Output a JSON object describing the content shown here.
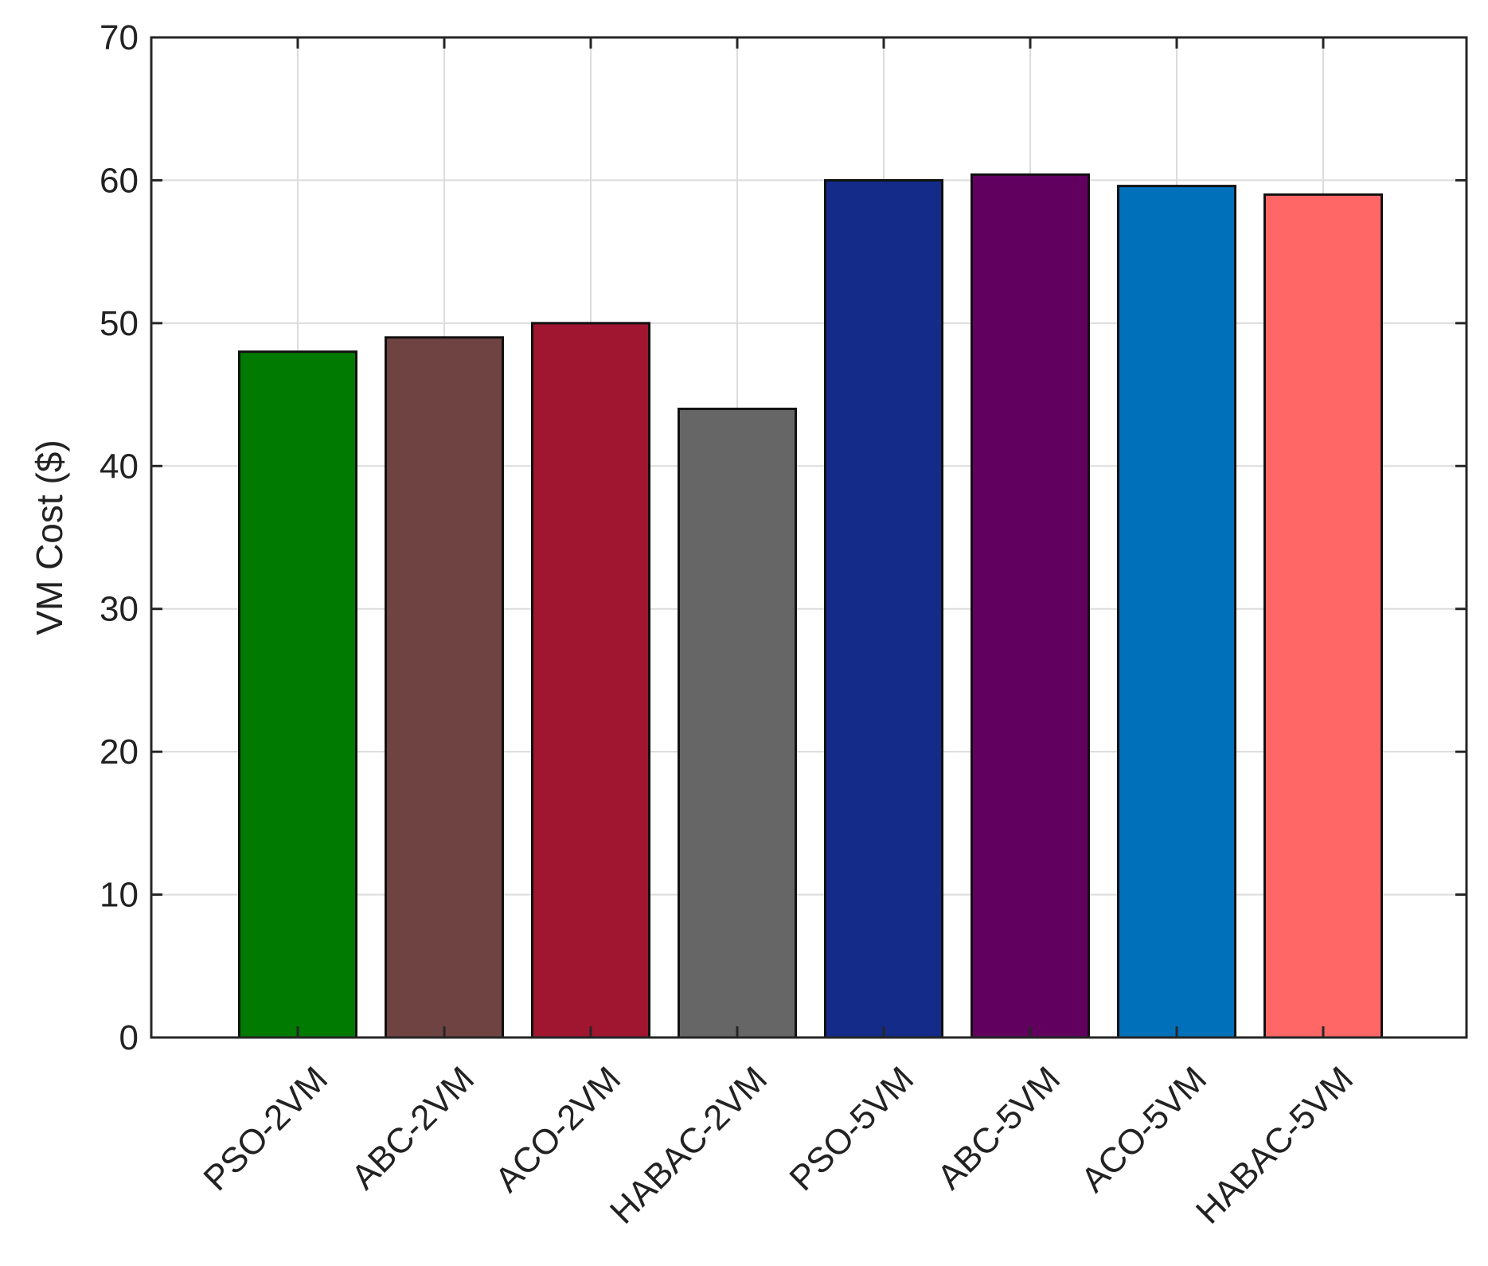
{
  "chart_data": {
    "type": "bar",
    "title": "",
    "xlabel": "",
    "ylabel": "VM Cost ($)",
    "ylim": [
      0,
      70
    ],
    "yticks": [
      0,
      10,
      20,
      30,
      40,
      50,
      60,
      70
    ],
    "grid": true,
    "categories": [
      "PSO-2VM",
      "ABC-2VM",
      "ACO-2VM",
      "HABAC-2VM",
      "PSO-5VM",
      "ABC-5VM",
      "ACO-5VM",
      "HABAC-5VM"
    ],
    "values": [
      48,
      49,
      50,
      44,
      60,
      60.4,
      59.6,
      59
    ],
    "colors": [
      "#007a00",
      "#704343",
      "#a01530",
      "#666666",
      "#142b8a",
      "#620060",
      "#0070bb",
      "#ff6666"
    ]
  }
}
